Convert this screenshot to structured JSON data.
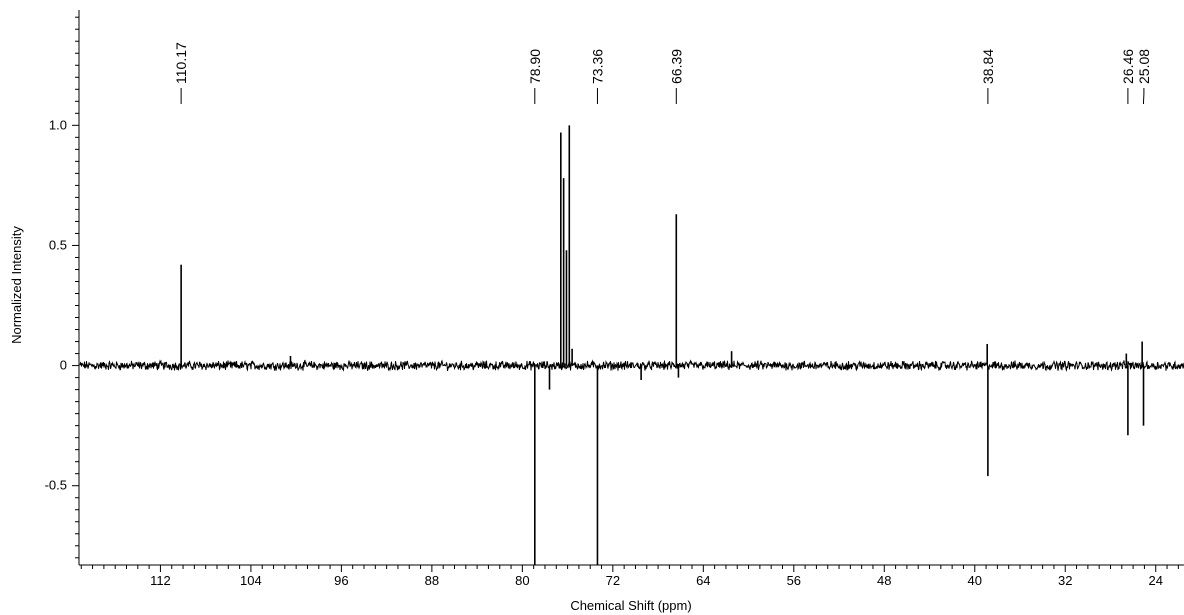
{
  "chart_data": {
    "type": "line",
    "title": "",
    "xlabel": "Chemical Shift (ppm)",
    "ylabel": "Normalized Intensity",
    "xlim": [
      119.2,
      21.5
    ],
    "ylim": [
      -0.83,
      1.48
    ],
    "x_reversed": true,
    "grid": false,
    "legend": "none",
    "x_ticks": [
      112,
      104,
      96,
      88,
      80,
      72,
      64,
      56,
      48,
      40,
      32,
      24
    ],
    "y_ticks": [
      {
        "value": 1.0,
        "label": "1.0"
      },
      {
        "value": 0.5,
        "label": "0.5"
      },
      {
        "value": 0,
        "label": "0"
      },
      {
        "value": -0.5,
        "label": "-0.5"
      }
    ],
    "noise_level": 0.015,
    "series": [
      {
        "color": "#000000",
        "peaks": [
          {
            "x": 110.17,
            "y": 0.42
          },
          {
            "x": 78.9,
            "y": -0.83
          },
          {
            "x": 77.6,
            "y": -0.1
          },
          {
            "x": 76.6,
            "y": 0.97
          },
          {
            "x": 76.35,
            "y": 0.78
          },
          {
            "x": 76.1,
            "y": 0.48
          },
          {
            "x": 75.85,
            "y": 1.0
          },
          {
            "x": 75.6,
            "y": 0.07
          },
          {
            "x": 73.36,
            "y": -0.83
          },
          {
            "x": 66.39,
            "y": 0.63
          },
          {
            "x": 66.2,
            "y": -0.05
          },
          {
            "x": 61.5,
            "y": 0.06
          },
          {
            "x": 38.84,
            "y": -0.46
          },
          {
            "x": 38.9,
            "y": 0.09
          },
          {
            "x": 26.46,
            "y": -0.29
          },
          {
            "x": 26.6,
            "y": 0.05
          },
          {
            "x": 25.08,
            "y": -0.25
          },
          {
            "x": 25.2,
            "y": 0.1
          },
          {
            "x": 100.5,
            "y": 0.04
          },
          {
            "x": 69.5,
            "y": -0.06
          }
        ]
      }
    ],
    "peak_labels": [
      {
        "x": 110.17,
        "text": "110.17"
      },
      {
        "x": 78.9,
        "text": "78.90"
      },
      {
        "x": 73.36,
        "text": "73.36"
      },
      {
        "x": 66.39,
        "text": "66.39"
      },
      {
        "x": 38.84,
        "text": "38.84"
      },
      {
        "x": 26.46,
        "text": "26.46"
      },
      {
        "x": 25.08,
        "text": "25.08"
      }
    ]
  }
}
